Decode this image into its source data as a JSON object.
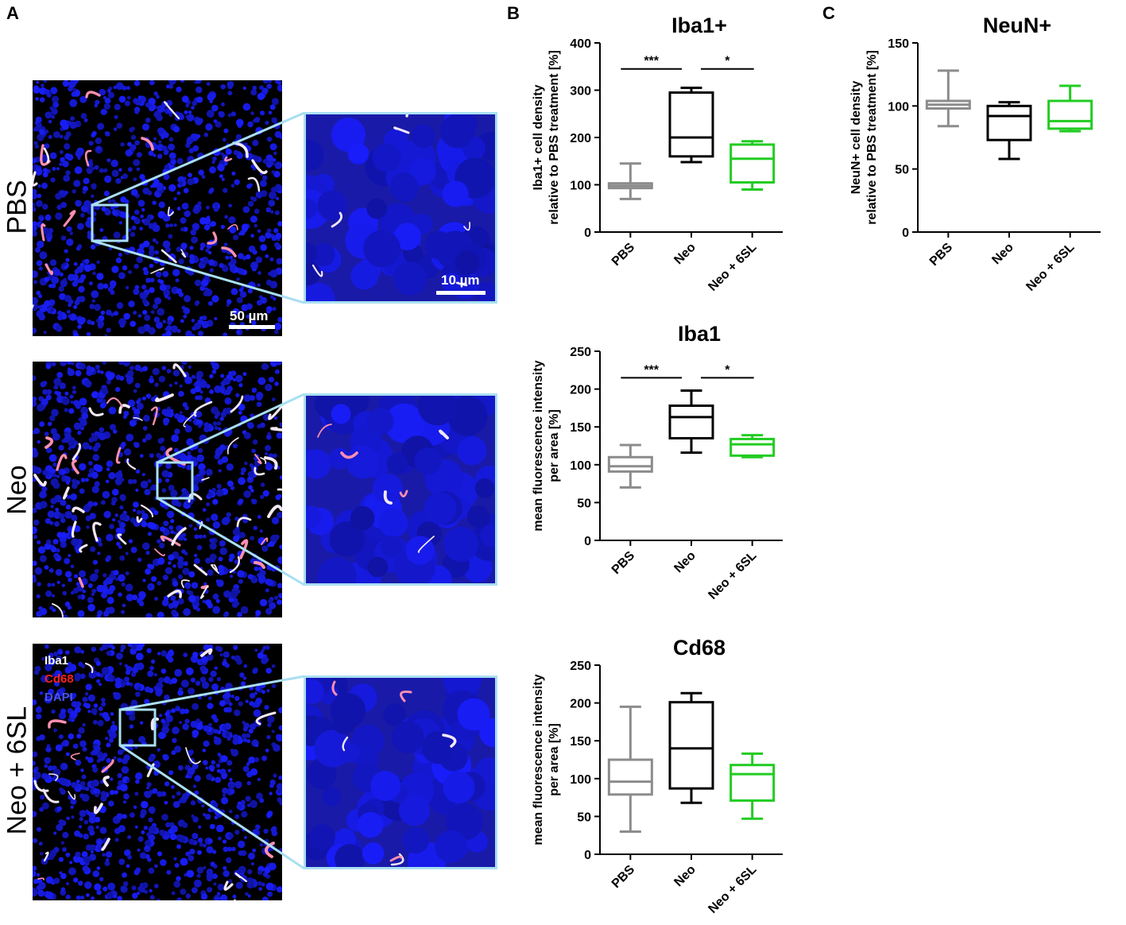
{
  "figure": {
    "panel_labels": [
      "A",
      "B",
      "C"
    ],
    "row_labels": [
      "PBS",
      "Neo",
      "Neo + 6SL"
    ],
    "scale_bars": {
      "overview": "50 µm",
      "zoom": "10 µm"
    },
    "channel_legend": [
      {
        "label": "Iba1",
        "color": "#ffffff"
      },
      {
        "label": "Cd68",
        "color": "#ff2020"
      },
      {
        "label": "DAPI",
        "color": "#4a55ee"
      }
    ],
    "colors": {
      "PBS": "#8c8c8c",
      "Neo": "#000000",
      "Neo + 6SL": "#22cc22",
      "zoom_frame": "#a9dff2",
      "nuclei": "#1a1aa8"
    }
  },
  "chart_data": [
    {
      "id": "iba1-plus",
      "type": "box",
      "title": "Iba1+",
      "ylabel_lines": [
        "Iba1+ cell density",
        "relative to PBS treatment [%]"
      ],
      "ylim": [
        0,
        400
      ],
      "yticks": [
        "0",
        "100",
        "200",
        "300",
        "400"
      ],
      "categories": [
        "PBS",
        "Neo",
        "Neo + 6SL"
      ],
      "boxes": [
        {
          "name": "PBS",
          "min": 70,
          "q1": 93,
          "median": 98,
          "q3": 103,
          "max": 145
        },
        {
          "name": "Neo",
          "min": 148,
          "q1": 160,
          "median": 200,
          "q3": 295,
          "max": 305
        },
        {
          "name": "Neo + 6SL",
          "min": 90,
          "q1": 105,
          "median": 155,
          "q3": 185,
          "max": 192
        }
      ],
      "significance": [
        {
          "from": 0,
          "to": 1,
          "label": "***",
          "y": 345
        },
        {
          "from": 1,
          "to": 2,
          "label": "*",
          "y": 345
        }
      ]
    },
    {
      "id": "iba1",
      "type": "box",
      "title": "Iba1",
      "ylabel_lines": [
        "mean fluorescence intensity",
        "per area [%]"
      ],
      "ylim": [
        0,
        250
      ],
      "yticks": [
        "0",
        "50",
        "100",
        "150",
        "200",
        "250"
      ],
      "categories": [
        "PBS",
        "Neo",
        "Neo + 6SL"
      ],
      "boxes": [
        {
          "name": "PBS",
          "min": 70,
          "q1": 91,
          "median": 98,
          "q3": 110,
          "max": 126
        },
        {
          "name": "Neo",
          "min": 116,
          "q1": 135,
          "median": 163,
          "q3": 178,
          "max": 198
        },
        {
          "name": "Neo + 6SL",
          "min": 110,
          "q1": 112,
          "median": 127,
          "q3": 134,
          "max": 139
        }
      ],
      "significance": [
        {
          "from": 0,
          "to": 1,
          "label": "***",
          "y": 215
        },
        {
          "from": 1,
          "to": 2,
          "label": "*",
          "y": 215
        }
      ]
    },
    {
      "id": "cd68",
      "type": "box",
      "title": "Cd68",
      "ylabel_lines": [
        "mean fluorescence intensity",
        "per area [%]"
      ],
      "ylim": [
        0,
        250
      ],
      "yticks": [
        "0",
        "50",
        "100",
        "150",
        "200",
        "250"
      ],
      "categories": [
        "PBS",
        "Neo",
        "Neo + 6SL"
      ],
      "boxes": [
        {
          "name": "PBS",
          "min": 30,
          "q1": 79,
          "median": 96,
          "q3": 125,
          "max": 195
        },
        {
          "name": "Neo",
          "min": 68,
          "q1": 87,
          "median": 140,
          "q3": 201,
          "max": 213
        },
        {
          "name": "Neo + 6SL",
          "min": 47,
          "q1": 71,
          "median": 106,
          "q3": 118,
          "max": 133
        }
      ],
      "significance": []
    },
    {
      "id": "neun",
      "type": "box",
      "title": "NeuN+",
      "ylabel_lines": [
        "NeuN+ cell density",
        "relative to PBS treatment [%]"
      ],
      "ylim": [
        0,
        150
      ],
      "yticks": [
        "0",
        "50",
        "100",
        "150"
      ],
      "categories": [
        "PBS",
        "Neo",
        "Neo + 6SL"
      ],
      "boxes": [
        {
          "name": "PBS",
          "min": 84,
          "q1": 98,
          "median": 101,
          "q3": 104,
          "max": 128
        },
        {
          "name": "Neo",
          "min": 58,
          "q1": 73,
          "median": 92,
          "q3": 100,
          "max": 103
        },
        {
          "name": "Neo + 6SL",
          "min": 80,
          "q1": 82,
          "median": 88,
          "q3": 104,
          "max": 116
        }
      ],
      "significance": []
    }
  ]
}
